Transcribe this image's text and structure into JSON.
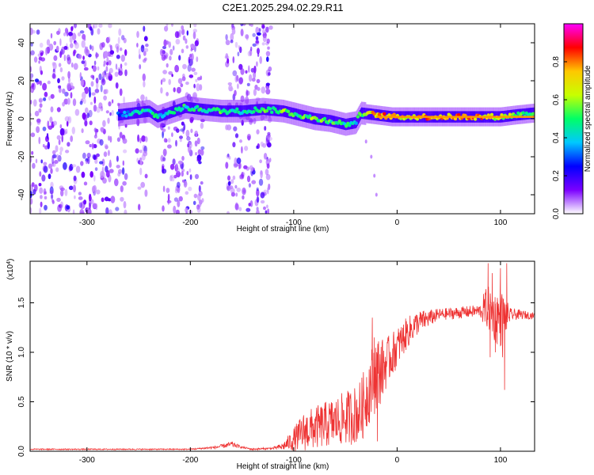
{
  "title": "C2E1.2025.294.02.29.R11",
  "chart_data": [
    {
      "type": "heatmap",
      "name": "spectrogram",
      "xlabel": "Height of straight line (km)",
      "ylabel": "Frequency (Hz)",
      "xlim": [
        -355,
        133
      ],
      "ylim": [
        -50,
        50
      ],
      "xticks": [
        -300,
        -200,
        -100,
        0,
        100
      ],
      "xtick_labels": [
        "-300",
        "-200",
        "-100",
        "0",
        "100"
      ],
      "yticks": [
        -40,
        -20,
        0,
        20,
        40
      ],
      "ytick_labels": [
        "-40",
        "-20",
        "0",
        "20",
        "40"
      ],
      "colorbar": {
        "label": "Normalized spectral amplitude",
        "range": [
          0,
          1
        ],
        "ticks": [
          0.0,
          0.2,
          0.4,
          0.6,
          0.8
        ],
        "tick_labels": [
          "0.0",
          "0.2",
          "0.4",
          "0.6",
          "0.8"
        ],
        "colors": [
          "#ffffff",
          "#7b00ff",
          "#0000ff",
          "#00c8ff",
          "#00ff66",
          "#c8ff00",
          "#ffc800",
          "#ff0000",
          "#ff00ff"
        ]
      },
      "noise_bands": [
        [
          -355,
          -275
        ],
        [
          -272,
          -262
        ],
        [
          -252,
          -242
        ],
        [
          -228,
          -188
        ],
        [
          -165,
          -122
        ]
      ],
      "ridge": [
        {
          "x": -270,
          "f": 2,
          "a": 0.3
        },
        {
          "x": -255,
          "f": 3,
          "a": 0.45
        },
        {
          "x": -240,
          "f": 4,
          "a": 0.5
        },
        {
          "x": -232,
          "f": 1,
          "a": 0.45
        },
        {
          "x": -205,
          "f": 6,
          "a": 0.5
        },
        {
          "x": -190,
          "f": 5,
          "a": 0.5
        },
        {
          "x": -170,
          "f": 4,
          "a": 0.55
        },
        {
          "x": -150,
          "f": 4,
          "a": 0.5
        },
        {
          "x": -130,
          "f": 5,
          "a": 0.55
        },
        {
          "x": -110,
          "f": 4,
          "a": 0.6
        },
        {
          "x": -95,
          "f": 2,
          "a": 0.55
        },
        {
          "x": -80,
          "f": 0,
          "a": 0.6
        },
        {
          "x": -65,
          "f": -1,
          "a": 0.55
        },
        {
          "x": -50,
          "f": -3,
          "a": 0.5
        },
        {
          "x": -40,
          "f": -2,
          "a": 0.45
        },
        {
          "x": -35,
          "f": 3,
          "a": 0.55
        },
        {
          "x": -20,
          "f": 2,
          "a": 0.85
        },
        {
          "x": -5,
          "f": 1,
          "a": 0.8
        },
        {
          "x": 10,
          "f": 1,
          "a": 0.75
        },
        {
          "x": 30,
          "f": 1,
          "a": 0.8
        },
        {
          "x": 50,
          "f": 1,
          "a": 0.85
        },
        {
          "x": 70,
          "f": 1,
          "a": 0.9
        },
        {
          "x": 85,
          "f": 1,
          "a": 0.75
        },
        {
          "x": 100,
          "f": 1,
          "a": 0.7
        },
        {
          "x": 115,
          "f": 2,
          "a": 0.6
        },
        {
          "x": 133,
          "f": 3,
          "a": 0.5
        }
      ],
      "faint_tail": [
        {
          "x": -30,
          "f": -12
        },
        {
          "x": -25,
          "f": -20
        },
        {
          "x": -22,
          "f": -30
        },
        {
          "x": -20,
          "f": -40
        }
      ]
    },
    {
      "type": "line",
      "name": "snr",
      "xlabel": "Height of straight line (km)",
      "ylabel": "SNR (10 * v/v)",
      "y_multiplier": "(x10",
      "y_multiplier_exp": "4",
      "y_multiplier_close": ")",
      "xlim": [
        -355,
        133
      ],
      "ylim": [
        0,
        1.92
      ],
      "xticks": [
        -300,
        -200,
        -100,
        0,
        100
      ],
      "xtick_labels": [
        "-300",
        "-200",
        "-100",
        "0",
        "100"
      ],
      "yticks": [
        0.0,
        0.5,
        1.0,
        1.5
      ],
      "ytick_labels": [
        "0.0",
        "0.5",
        "1.0",
        "1.5"
      ],
      "color": "#ee3333",
      "envelope": {
        "x": [
          -355,
          -200,
          -175,
          -160,
          -150,
          -140,
          -120,
          -110,
          -100,
          -90,
          -75,
          -60,
          -45,
          -35,
          -30,
          -25,
          -20,
          -15,
          -10,
          0,
          10,
          20,
          40,
          60,
          80,
          88,
          95,
          100,
          110,
          120,
          133
        ],
        "y": [
          0.02,
          0.02,
          0.04,
          0.07,
          0.04,
          0.02,
          0.03,
          0.05,
          0.12,
          0.2,
          0.25,
          0.3,
          0.35,
          0.4,
          0.55,
          0.7,
          0.8,
          0.82,
          0.9,
          1.05,
          1.2,
          1.3,
          1.38,
          1.4,
          1.42,
          1.45,
          1.35,
          1.35,
          1.38,
          1.38,
          1.37
        ]
      },
      "noise_amp": {
        "x": [
          -355,
          -200,
          -175,
          -160,
          -150,
          -120,
          -110,
          -100,
          -90,
          -60,
          -40,
          -30,
          -20,
          -10,
          0,
          20,
          40,
          80,
          85,
          100,
          110,
          133
        ],
        "y": [
          0.006,
          0.006,
          0.015,
          0.03,
          0.01,
          0.01,
          0.04,
          0.12,
          0.2,
          0.25,
          0.3,
          0.35,
          0.4,
          0.25,
          0.2,
          0.12,
          0.06,
          0.06,
          0.2,
          0.3,
          0.06,
          0.03
        ]
      },
      "spikes": [
        {
          "x": -24,
          "y": 1.35
        },
        {
          "x": -22,
          "y": 1.15
        },
        {
          "x": -19,
          "y": 0.1
        },
        {
          "x": -14,
          "y": 1.0
        },
        {
          "x": 88,
          "y": 1.9
        },
        {
          "x": 90,
          "y": 0.95
        },
        {
          "x": 92,
          "y": 1.8
        },
        {
          "x": 95,
          "y": 1.0
        },
        {
          "x": 97,
          "y": 1.55
        },
        {
          "x": 100,
          "y": 1.85
        },
        {
          "x": 102,
          "y": 0.95
        },
        {
          "x": 104,
          "y": 0.62
        },
        {
          "x": 106,
          "y": 1.9
        }
      ]
    }
  ]
}
